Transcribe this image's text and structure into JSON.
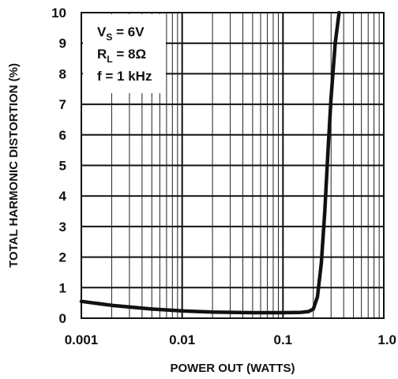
{
  "chart_data": {
    "type": "line",
    "title": "",
    "xlabel": "POWER OUT (WATTS)",
    "ylabel": "TOTAL HARMONIC DISTORTION (%)",
    "x_scale": "log",
    "xlim": [
      0.001,
      1.0
    ],
    "ylim": [
      0,
      10
    ],
    "grid": true,
    "x_ticks": [
      "0.001",
      "0.01",
      "0.1",
      "1.0"
    ],
    "y_ticks": [
      "0",
      "1",
      "2",
      "3",
      "4",
      "5",
      "6",
      "7",
      "8",
      "9",
      "10"
    ],
    "conditions": [
      {
        "symbol": "V",
        "subscript": "S",
        "text": " = 6V"
      },
      {
        "symbol": "R",
        "subscript": "L",
        "text": " = 8Ω"
      },
      {
        "symbol": "",
        "subscript": "",
        "text": "f = 1 kHz"
      }
    ],
    "series": [
      {
        "x": [
          0.001,
          0.002,
          0.005,
          0.01,
          0.02,
          0.05,
          0.1,
          0.15,
          0.18,
          0.2,
          0.22,
          0.24,
          0.26,
          0.28,
          0.3,
          0.33,
          0.36
        ],
        "y": [
          0.55,
          0.42,
          0.3,
          0.24,
          0.2,
          0.18,
          0.18,
          0.19,
          0.22,
          0.3,
          0.7,
          1.8,
          3.5,
          5.5,
          7.2,
          9.0,
          10.0
        ]
      }
    ]
  }
}
